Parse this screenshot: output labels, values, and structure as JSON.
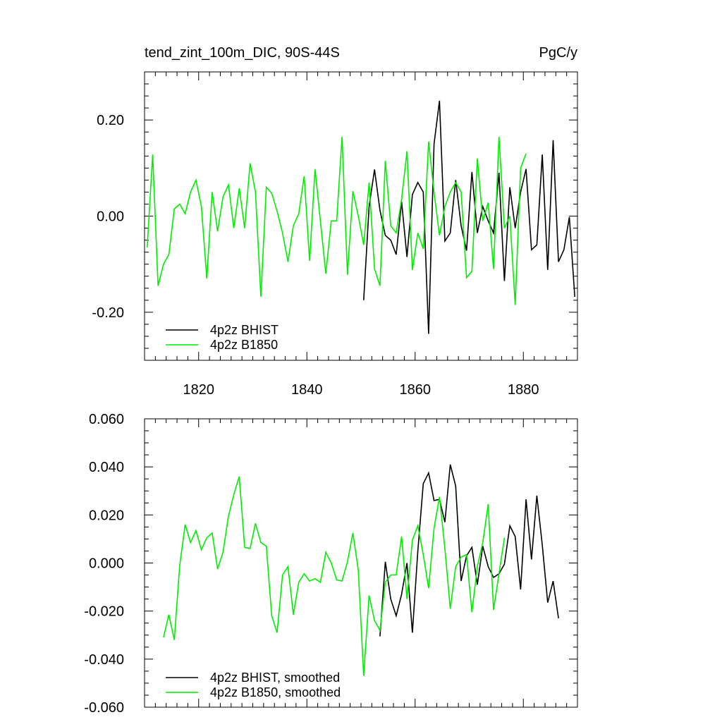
{
  "chart_data": [
    {
      "type": "line",
      "title": "tend_zint_100m_DIC, 90S-44S",
      "units": "PgC/y",
      "xlim": [
        1810,
        1890
      ],
      "ylim": [
        -0.3,
        0.3
      ],
      "yticks": [
        -0.2,
        0.0,
        0.2
      ],
      "ytick_labels": [
        "-0.20",
        "0.00",
        "0.20"
      ],
      "xticks": [
        1820,
        1840,
        1860,
        1880
      ],
      "xtick_labels": [
        "1820",
        "1840",
        "1860",
        "1880"
      ],
      "legend": [
        "4p2z BHIST",
        "4p2z B1850"
      ],
      "legend_placement": "bottom-left",
      "series": [
        {
          "name": "4p2z BHIST",
          "color": "#000000",
          "x_start": 1850.5,
          "values": [
            -0.175,
            0.02,
            0.097,
            0.012,
            -0.04,
            -0.05,
            -0.08,
            0.03,
            -0.085,
            0.045,
            0.07,
            0.05,
            -0.245,
            0.15,
            0.24,
            -0.052,
            -0.035,
            0.075,
            -0.02,
            -0.072,
            0.092,
            -0.035,
            0.02,
            -0.01,
            -0.035,
            0.09,
            -0.135,
            0.06,
            -0.025,
            0.05,
            0.098,
            -0.07,
            -0.06,
            0.128,
            -0.112,
            0.158,
            -0.095,
            -0.07,
            -0.002,
            -0.168
          ]
        },
        {
          "name": "4p2z B1850",
          "color": "#00ee00",
          "x_start": 1810.5,
          "values": [
            -0.065,
            0.128,
            -0.145,
            -0.1,
            -0.08,
            0.015,
            0.025,
            0.005,
            0.05,
            0.075,
            0.02,
            -0.13,
            0.05,
            -0.032,
            0.04,
            0.065,
            -0.025,
            0.058,
            -0.025,
            0.11,
            0.05,
            -0.168,
            0.06,
            0.048,
            0.01,
            -0.035,
            -0.095,
            -0.02,
            0.005,
            0.083,
            -0.093,
            0.098,
            -0.01,
            -0.12,
            -0.01,
            -0.01,
            0.165,
            -0.122,
            0.052,
            0.0,
            -0.06,
            0.07,
            -0.11,
            -0.145,
            0.115,
            -0.02,
            -0.035,
            0.035,
            0.135,
            -0.112,
            -0.035,
            -0.068,
            0.155,
            0.05,
            -0.04,
            0.02,
            0.05,
            0.07,
            0.05,
            -0.128,
            -0.115,
            0.12,
            -0.01,
            0.028,
            -0.11,
            0.165,
            -0.025,
            -0.0,
            -0.185,
            0.1,
            0.13
          ]
        }
      ]
    },
    {
      "type": "line",
      "title": "",
      "xlim": [
        1810,
        1890
      ],
      "ylim": [
        -0.06,
        0.06
      ],
      "yticks": [
        -0.06,
        -0.04,
        -0.02,
        0.0,
        0.02,
        0.04,
        0.06
      ],
      "ytick_labels": [
        "-0.060",
        "-0.040",
        "-0.020",
        "0.000",
        "0.020",
        "0.040",
        "0.060"
      ],
      "xticks": [
        1820,
        1840,
        1860,
        1880
      ],
      "legend": [
        "4p2z BHIST, smoothed",
        "4p2z B1850, smoothed"
      ],
      "legend_placement": "bottom-left",
      "series": [
        {
          "name": "4p2z BHIST, smoothed",
          "color": "#000000",
          "x_start": 1853.5,
          "values": [
            -0.0305,
            0.0005,
            -0.015,
            -0.022,
            -0.013,
            0.0,
            -0.029,
            0.005,
            0.033,
            0.0375,
            0.026,
            0.0265,
            0.017,
            0.041,
            0.032,
            -0.0075,
            0.003,
            0.0065,
            -0.009,
            0.007,
            -0.0015,
            -0.006,
            -0.0045,
            -0.0005,
            0.0155,
            0.011,
            -0.011,
            0.0265,
            0.0015,
            0.028,
            0.0075,
            -0.0165,
            -0.0075,
            -0.023
          ]
        },
        {
          "name": "4p2z B1850, smoothed",
          "color": "#00ee00",
          "x_start": 1813.5,
          "values": [
            -0.031,
            -0.0215,
            -0.032,
            -0.001,
            0.016,
            0.0085,
            0.0135,
            0.0055,
            0.0105,
            0.0125,
            -0.0025,
            0.0045,
            0.0195,
            0.0285,
            0.036,
            0.0065,
            0.006,
            0.0165,
            0.0085,
            0.007,
            -0.022,
            -0.029,
            -0.005,
            -0.0015,
            -0.0215,
            -0.008,
            -0.0045,
            -0.0075,
            -0.0065,
            -0.008,
            0.0045,
            -0.0,
            -0.007,
            -0.0075,
            0.0005,
            0.0125,
            -0.003,
            -0.047,
            -0.0135,
            -0.024,
            -0.028,
            -0.008,
            -0.005,
            -0.005,
            0.011,
            -0.015,
            0.0095,
            0.0155,
            0.0035,
            -0.0105,
            0.0145,
            0.0275,
            0.006,
            -0.019,
            -0.0015,
            0.0025,
            0.0035,
            -0.0205,
            -0.0015,
            0.0085,
            0.0245,
            -0.0195,
            -0.0045,
            0.0105
          ]
        }
      ]
    }
  ]
}
